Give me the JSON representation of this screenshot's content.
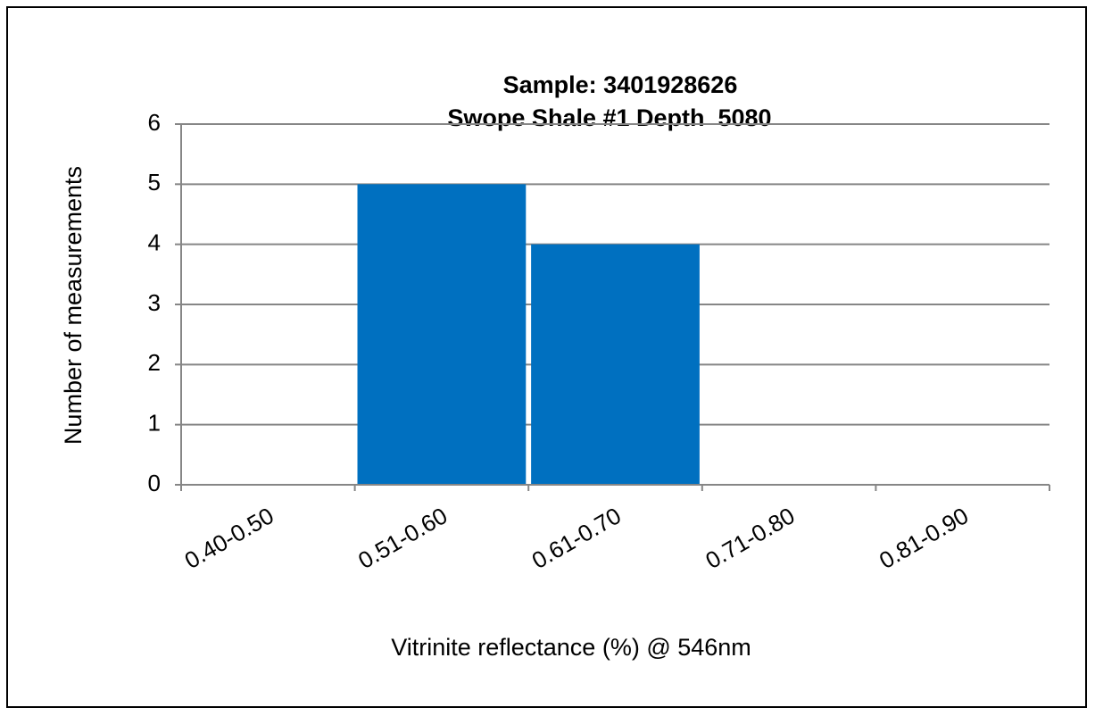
{
  "chart_data": {
    "type": "bar",
    "title": "Sample: 3401928626",
    "subtitle": "Swope Shale #1 Depth  5080",
    "x_label": "Vitrinite reflectance (%) @ 546nm",
    "y_label": "Number of measurements",
    "categories": [
      "0.40-0.50",
      "0.51-0.60",
      "0.61-0.70",
      "0.71-0.80",
      "0.81-0.90"
    ],
    "values": [
      0,
      5,
      4,
      0,
      0
    ],
    "color": "#0070c0",
    "ylim": [
      0,
      6
    ],
    "yticks": [
      0,
      1,
      2,
      3,
      4,
      5,
      6
    ],
    "grid": true
  }
}
